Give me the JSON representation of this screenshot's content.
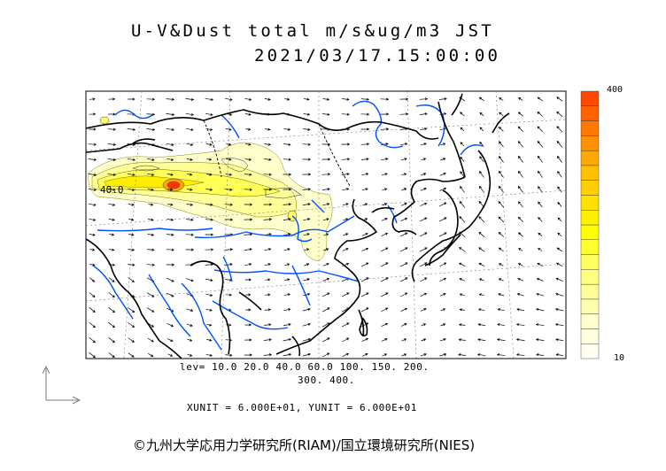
{
  "title": {
    "line1": "U-V&Dust total m/s&ug/m3 JST",
    "line2": "2021/03/17.15:00:00"
  },
  "contour_label": "40.0",
  "levels": {
    "line1": "lev= 10.0 20.0 40.0 60.0 100. 150. 200.",
    "line2": "300. 400."
  },
  "units": "XUNIT = 6.000E+01, YUNIT = 6.000E+01",
  "colorbar": {
    "max_label": "400",
    "min_label": "10",
    "colors": [
      "#fffff0",
      "#ffffe0",
      "#ffffcc",
      "#ffffb0",
      "#ffff99",
      "#ffff80",
      "#ffff60",
      "#ffff30",
      "#ffff00",
      "#fff000",
      "#ffe000",
      "#ffd000",
      "#ffc000",
      "#ffa800",
      "#ff9000",
      "#ff7800",
      "#ff6000",
      "#ff4800"
    ]
  },
  "credit": "©九州大学応用力学研究所(RIAM)/国立環境研究所(NIES)",
  "colors": {
    "water": "#0050ff",
    "land_border": "#000000",
    "dust_low": "#ffffcc",
    "dust_mid": "#ffff66",
    "dust_high": "#ff3300"
  }
}
